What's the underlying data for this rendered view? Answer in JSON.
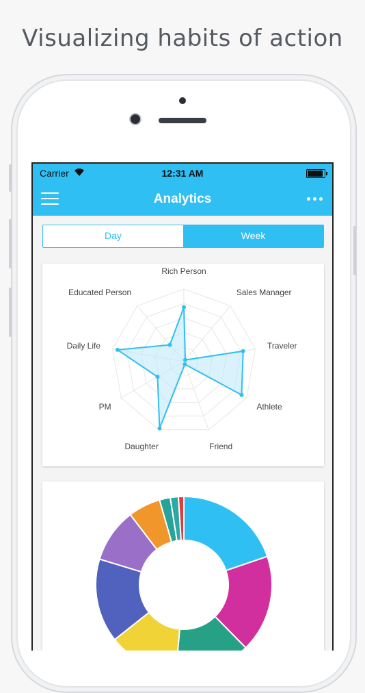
{
  "headline": "Visualizing habits of action",
  "status_bar": {
    "carrier": "Carrier",
    "time": "12:31 AM",
    "wifi_icon": "wifi-icon",
    "battery_icon": "battery-icon"
  },
  "navbar": {
    "title": "Analytics",
    "menu_icon": "hamburger-menu-icon",
    "more_icon": "more-dots-icon"
  },
  "segmented_control": {
    "options": [
      "Day",
      "Week"
    ],
    "selected": "Week"
  },
  "colors": {
    "accent": "#30bff2",
    "radar_stroke": "#30bff2",
    "radar_fill": "#bfe9fa"
  },
  "chart_data": [
    {
      "type": "radar",
      "axes": [
        "Rich Person",
        "Sales Manager",
        "Traveler",
        "Athlete",
        "Friend",
        "Daughter",
        "PM",
        "Daily Life",
        "Educated Person"
      ],
      "values": [
        0.75,
        0.03,
        0.83,
        0.92,
        0.04,
        0.98,
        0.42,
        0.93,
        0.3
      ],
      "range": [
        0,
        1
      ],
      "grid": true
    },
    {
      "type": "donut",
      "slices": [
        {
          "value": 20.0,
          "color": "#30bff2"
        },
        {
          "value": 18.0,
          "color": "#d22f9e"
        },
        {
          "value": 14.0,
          "color": "#27a185"
        },
        {
          "value": 13.0,
          "color": "#f0d337"
        },
        {
          "value": 15.5,
          "color": "#5162be"
        },
        {
          "value": 10.0,
          "color": "#9a6fc7"
        },
        {
          "value": 6.0,
          "color": "#f0962a"
        },
        {
          "value": 2.0,
          "color": "#27a39a"
        },
        {
          "value": 1.5,
          "color": "#2aa9a5"
        },
        {
          "value": 1.0,
          "color": "#e33a3a"
        }
      ]
    }
  ]
}
